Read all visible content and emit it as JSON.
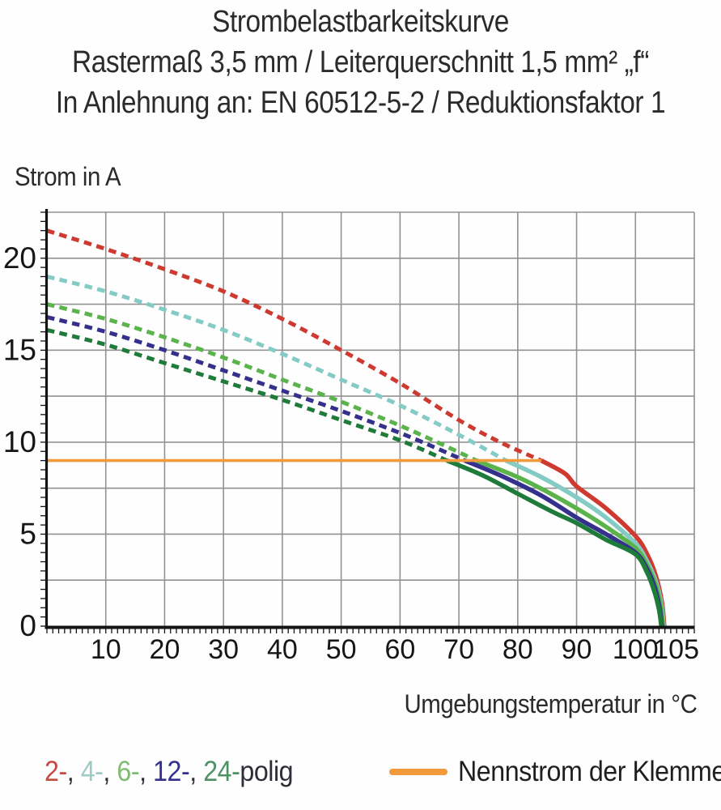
{
  "title": {
    "line1": "Strombelastbarkeitskurve",
    "line2": "Rastermaß 3,5 mm / Leiterquerschnitt 1,5 mm² „f“",
    "line3": "In Anlehnung an: EN 60512-5-2 / Reduktionsfaktor 1"
  },
  "chart_data": {
    "type": "line",
    "title": "Strombelastbarkeitskurve",
    "xlabel": "Umgebungstemperatur in °C",
    "ylabel": "Strom in A",
    "xlim": [
      0,
      110
    ],
    "ylim": [
      0,
      22.5
    ],
    "x_tick_labels": [
      10,
      20,
      30,
      40,
      50,
      60,
      70,
      80,
      90,
      100,
      105
    ],
    "y_tick_labels": [
      0,
      5,
      10,
      15,
      20
    ],
    "x_grid_step": 10,
    "y_grid_step": 2.5,
    "x_minor_tick_step": 1,
    "y_minor_tick_step": 0.5,
    "grid": true,
    "grid_color": "#929292",
    "axis_color": "#141414",
    "rated_current_line": {
      "label": "Nennstrom der Klemme",
      "current_A": 9,
      "x_start_C": 0,
      "x_end_C": 84,
      "color": "#F09A3C"
    },
    "series": [
      {
        "name": "2-polig",
        "poles": 2,
        "color": "#CE3A30",
        "dashed_points": [
          [
            0,
            21.5
          ],
          [
            10,
            20.5
          ],
          [
            20,
            19.4
          ],
          [
            30,
            18.2
          ],
          [
            40,
            16.7
          ],
          [
            50,
            15.0
          ],
          [
            60,
            13.2
          ],
          [
            70,
            11.2
          ],
          [
            77,
            10.0
          ],
          [
            84,
            9.0
          ]
        ],
        "solid_points": [
          [
            84,
            9.0
          ],
          [
            88,
            8.3
          ],
          [
            90,
            7.6
          ],
          [
            95,
            6.4
          ],
          [
            100,
            4.9
          ],
          [
            102,
            3.9
          ],
          [
            103.5,
            2.7
          ],
          [
            104.5,
            1.3
          ],
          [
            104.9,
            0
          ]
        ]
      },
      {
        "name": "4-polig",
        "poles": 4,
        "color": "#84CAC5",
        "dashed_points": [
          [
            0,
            19.0
          ],
          [
            10,
            18.2
          ],
          [
            20,
            17.2
          ],
          [
            30,
            16.1
          ],
          [
            40,
            14.8
          ],
          [
            50,
            13.4
          ],
          [
            60,
            12.0
          ],
          [
            70,
            10.4
          ],
          [
            78,
            9.0
          ]
        ],
        "solid_points": [
          [
            78,
            9.0
          ],
          [
            84,
            8.1
          ],
          [
            90,
            7.0
          ],
          [
            95,
            5.9
          ],
          [
            100,
            4.5
          ],
          [
            102,
            3.5
          ],
          [
            103.5,
            2.4
          ],
          [
            104.4,
            1.2
          ],
          [
            104.8,
            0
          ]
        ]
      },
      {
        "name": "6-polig",
        "poles": 6,
        "color": "#5BB34C",
        "dashed_points": [
          [
            0,
            17.5
          ],
          [
            10,
            16.7
          ],
          [
            20,
            15.7
          ],
          [
            30,
            14.6
          ],
          [
            40,
            13.4
          ],
          [
            50,
            12.2
          ],
          [
            60,
            10.9
          ],
          [
            67,
            9.9
          ],
          [
            73,
            9.0
          ]
        ],
        "solid_points": [
          [
            73,
            9.0
          ],
          [
            80,
            8.1
          ],
          [
            85,
            7.3
          ],
          [
            90,
            6.4
          ],
          [
            95,
            5.4
          ],
          [
            100,
            4.25
          ],
          [
            102,
            3.3
          ],
          [
            103.5,
            2.2
          ],
          [
            104.3,
            1.1
          ],
          [
            104.7,
            0
          ]
        ]
      },
      {
        "name": "12-polig",
        "poles": 12,
        "color": "#34308C",
        "dashed_points": [
          [
            0,
            16.8
          ],
          [
            10,
            16.0
          ],
          [
            20,
            15.0
          ],
          [
            30,
            13.9
          ],
          [
            40,
            12.8
          ],
          [
            50,
            11.7
          ],
          [
            60,
            10.5
          ],
          [
            66,
            9.7
          ],
          [
            71,
            9.0
          ]
        ],
        "solid_points": [
          [
            71,
            9.0
          ],
          [
            77,
            8.2
          ],
          [
            84,
            7.1
          ],
          [
            90,
            5.9
          ],
          [
            95,
            5.0
          ],
          [
            100,
            4.0
          ],
          [
            102,
            3.1
          ],
          [
            103.3,
            2.1
          ],
          [
            104.1,
            1.0
          ],
          [
            104.5,
            0
          ]
        ]
      },
      {
        "name": "24-polig",
        "poles": 24,
        "color": "#1F7B3A",
        "dashed_points": [
          [
            0,
            16.1
          ],
          [
            10,
            15.3
          ],
          [
            20,
            14.3
          ],
          [
            30,
            13.3
          ],
          [
            40,
            12.3
          ],
          [
            50,
            11.2
          ],
          [
            60,
            10.1
          ],
          [
            68,
            9.0
          ]
        ],
        "solid_points": [
          [
            68,
            9.0
          ],
          [
            74,
            8.2
          ],
          [
            80,
            7.2
          ],
          [
            86,
            6.2
          ],
          [
            90,
            5.6
          ],
          [
            95,
            4.7
          ],
          [
            100,
            3.9
          ],
          [
            102,
            2.9
          ],
          [
            103.2,
            1.9
          ],
          [
            104,
            0.9
          ],
          [
            104.4,
            0
          ]
        ]
      }
    ]
  },
  "legend": {
    "poles_items": [
      {
        "label": "2",
        "color": "#C74A41"
      },
      {
        "label": "4",
        "color": "#9CCAC6"
      },
      {
        "label": "6",
        "color": "#7FBC72"
      },
      {
        "label": "12",
        "color": "#34308C"
      },
      {
        "label": "24",
        "color": "#4F9166"
      }
    ],
    "separator": ", ",
    "poles_suffix": "polig",
    "text_color": "#2e2e38",
    "rated_label": "Nennstrom der Klemme",
    "rated_color": "#F09A3C"
  }
}
